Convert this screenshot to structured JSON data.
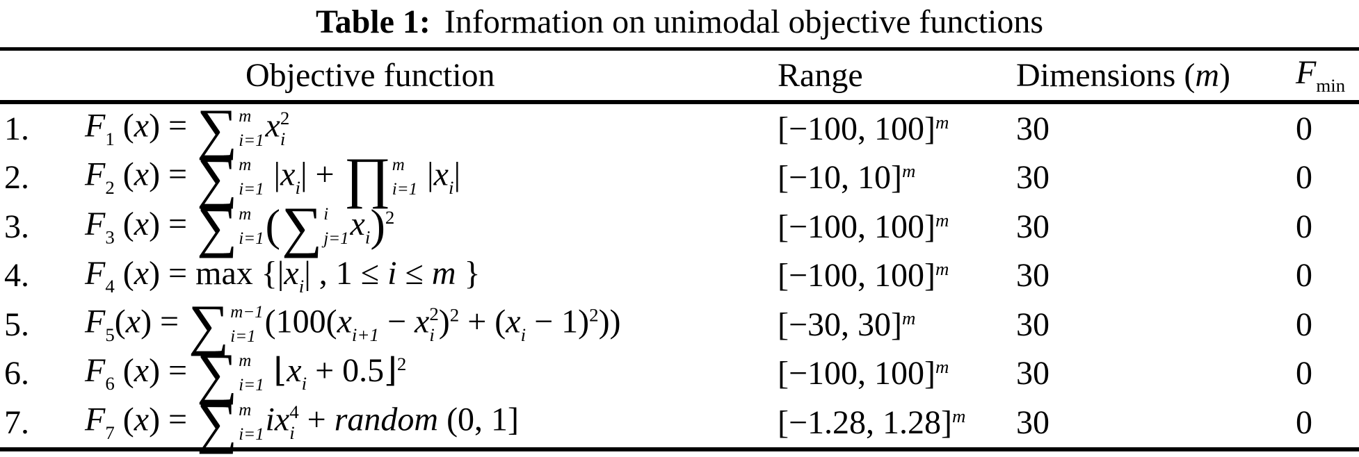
{
  "colors": {
    "text": "#000000",
    "background": "#ffffff",
    "rule": "#000000"
  },
  "title": {
    "label": "Table 1:",
    "text": "Information on unimodal objective functions"
  },
  "header": {
    "objective": "Objective function",
    "range": "Range",
    "dimensions_tokens": [
      {
        "k": "t",
        "v": "Dimensions ("
      },
      {
        "k": "v",
        "v": "m"
      },
      {
        "k": "t",
        "v": ")"
      }
    ],
    "fmin_tokens": [
      {
        "k": "v",
        "v": "F"
      },
      {
        "k": "sub",
        "v": "min"
      }
    ]
  },
  "rows": [
    {
      "num": "1.",
      "formula": [
        {
          "k": "v",
          "v": "F"
        },
        {
          "k": "sub",
          "v": "1"
        },
        {
          "k": "t",
          "v": " ("
        },
        {
          "k": "v",
          "v": "x"
        },
        {
          "k": "t",
          "v": ") = "
        },
        {
          "k": "op",
          "g": "∑",
          "sup": "m",
          "sub": "i=1"
        },
        {
          "k": "v",
          "v": "x"
        },
        {
          "k": "ss",
          "sup": "2",
          "sub": "i"
        }
      ],
      "range": [
        {
          "k": "t",
          "v": "[−100, 100]"
        },
        {
          "k": "sup",
          "v": "m",
          "it": true
        }
      ],
      "dimensions": "30",
      "fmin": "0"
    },
    {
      "num": "2.",
      "formula": [
        {
          "k": "v",
          "v": "F"
        },
        {
          "k": "sub",
          "v": "2"
        },
        {
          "k": "t",
          "v": " ("
        },
        {
          "k": "v",
          "v": "x"
        },
        {
          "k": "t",
          "v": ") = "
        },
        {
          "k": "op",
          "g": "∑",
          "sup": "m",
          "sub": "i=1"
        },
        {
          "k": "t",
          "v": " |"
        },
        {
          "k": "v",
          "v": "x"
        },
        {
          "k": "sub",
          "v": "i",
          "it": true
        },
        {
          "k": "t",
          "v": "| + "
        },
        {
          "k": "op",
          "g": "∏",
          "sup": "m",
          "sub": "i=1"
        },
        {
          "k": "t",
          "v": " |"
        },
        {
          "k": "v",
          "v": "x"
        },
        {
          "k": "sub",
          "v": "i",
          "it": true
        },
        {
          "k": "t",
          "v": "|"
        }
      ],
      "range": [
        {
          "k": "t",
          "v": "[−10, 10]"
        },
        {
          "k": "sup",
          "v": "m",
          "it": true
        }
      ],
      "dimensions": "30",
      "fmin": "0"
    },
    {
      "num": "3.",
      "formula": [
        {
          "k": "v",
          "v": "F"
        },
        {
          "k": "sub",
          "v": "3"
        },
        {
          "k": "t",
          "v": " ("
        },
        {
          "k": "v",
          "v": "x"
        },
        {
          "k": "t",
          "v": ") = "
        },
        {
          "k": "op",
          "g": "∑",
          "sup": "m",
          "sub": "i=1"
        },
        {
          "k": "b",
          "v": "("
        },
        {
          "k": "op",
          "g": "∑",
          "sup": "i",
          "sub": "j=1"
        },
        {
          "k": "v",
          "v": "x"
        },
        {
          "k": "sub",
          "v": "i",
          "it": true
        },
        {
          "k": "b",
          "v": ")"
        },
        {
          "k": "sup",
          "v": "2"
        }
      ],
      "range": [
        {
          "k": "t",
          "v": "[−100, 100]"
        },
        {
          "k": "sup",
          "v": "m",
          "it": true
        }
      ],
      "dimensions": "30",
      "fmin": "0"
    },
    {
      "num": "4.",
      "formula": [
        {
          "k": "v",
          "v": "F"
        },
        {
          "k": "sub",
          "v": "4"
        },
        {
          "k": "t",
          "v": " ("
        },
        {
          "k": "v",
          "v": "x"
        },
        {
          "k": "t",
          "v": ") = max {|"
        },
        {
          "k": "v",
          "v": "x"
        },
        {
          "k": "sub",
          "v": "i",
          "it": true
        },
        {
          "k": "t",
          "v": "| , 1 ≤ "
        },
        {
          "k": "v",
          "v": "i"
        },
        {
          "k": "t",
          "v": " ≤ "
        },
        {
          "k": "v",
          "v": "m"
        },
        {
          "k": "t",
          "v": " }"
        }
      ],
      "range": [
        {
          "k": "t",
          "v": "[−100, 100]"
        },
        {
          "k": "sup",
          "v": "m",
          "it": true
        }
      ],
      "dimensions": "30",
      "fmin": "0"
    },
    {
      "num": "5.",
      "formula": [
        {
          "k": "v",
          "v": "F"
        },
        {
          "k": "sub",
          "v": "5"
        },
        {
          "k": "t",
          "v": "("
        },
        {
          "k": "v",
          "v": "x"
        },
        {
          "k": "t",
          "v": ") = "
        },
        {
          "k": "op",
          "g": "∑",
          "sup": "m−1",
          "sub": "i=1"
        },
        {
          "k": "t",
          "v": "(100("
        },
        {
          "k": "v",
          "v": "x"
        },
        {
          "k": "sub",
          "v": "i+1",
          "it": true
        },
        {
          "k": "t",
          "v": " − "
        },
        {
          "k": "v",
          "v": "x"
        },
        {
          "k": "ss",
          "sup": "2",
          "sub": "i"
        },
        {
          "k": "t",
          "v": ")"
        },
        {
          "k": "sup",
          "v": "2"
        },
        {
          "k": "t",
          "v": " + ("
        },
        {
          "k": "v",
          "v": "x"
        },
        {
          "k": "sub",
          "v": "i",
          "it": true
        },
        {
          "k": "t",
          "v": " − 1)"
        },
        {
          "k": "sup",
          "v": "2"
        },
        {
          "k": "t",
          "v": "))"
        }
      ],
      "range": [
        {
          "k": "t",
          "v": "[−30, 30]"
        },
        {
          "k": "sup",
          "v": "m",
          "it": true
        }
      ],
      "dimensions": "30",
      "fmin": "0"
    },
    {
      "num": "6.",
      "formula": [
        {
          "k": "v",
          "v": "F"
        },
        {
          "k": "sub",
          "v": "6"
        },
        {
          "k": "t",
          "v": " ("
        },
        {
          "k": "v",
          "v": "x"
        },
        {
          "k": "t",
          "v": ") = "
        },
        {
          "k": "op",
          "g": "∑",
          "sup": "m",
          "sub": "i=1"
        },
        {
          "k": "t",
          "v": " ⌊"
        },
        {
          "k": "v",
          "v": "x"
        },
        {
          "k": "sub",
          "v": "i",
          "it": true
        },
        {
          "k": "t",
          "v": " + 0.5⌋"
        },
        {
          "k": "sup",
          "v": "2"
        }
      ],
      "range": [
        {
          "k": "t",
          "v": "[−100, 100]"
        },
        {
          "k": "sup",
          "v": "m",
          "it": true
        }
      ],
      "dimensions": "30",
      "fmin": "0"
    },
    {
      "num": "7.",
      "formula": [
        {
          "k": "v",
          "v": "F"
        },
        {
          "k": "sub",
          "v": "7"
        },
        {
          "k": "t",
          "v": " ("
        },
        {
          "k": "v",
          "v": "x"
        },
        {
          "k": "t",
          "v": ") = "
        },
        {
          "k": "op",
          "g": "∑",
          "sup": "m",
          "sub": "i=1"
        },
        {
          "k": "v",
          "v": "i"
        },
        {
          "k": "v",
          "v": "x"
        },
        {
          "k": "ss",
          "sup": "4",
          "sub": "i"
        },
        {
          "k": "t",
          "v": " + "
        },
        {
          "k": "v",
          "v": "random"
        },
        {
          "k": "t",
          "v": " (0, 1]"
        }
      ],
      "range": [
        {
          "k": "t",
          "v": "[−1.28, 1.28]"
        },
        {
          "k": "sup",
          "v": "m",
          "it": true
        }
      ],
      "dimensions": "30",
      "fmin": "0"
    }
  ]
}
